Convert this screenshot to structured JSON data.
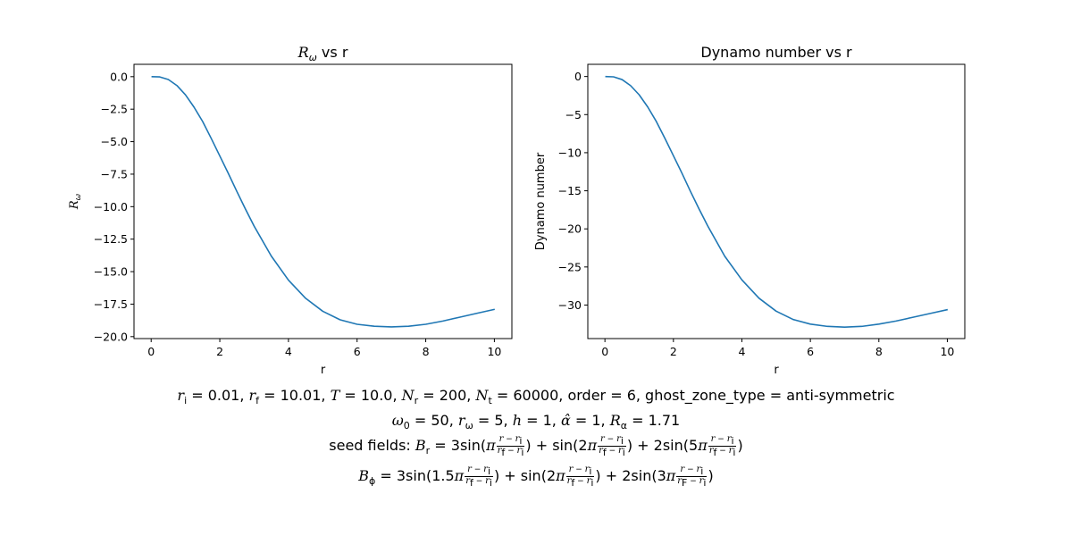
{
  "chart_data": [
    {
      "type": "line",
      "title": "R_ω vs r",
      "title_symbol": "R",
      "title_sub": "ω",
      "title_rest": " vs r",
      "xlabel": "r",
      "ylabel": "R_ω",
      "ylabel_symbol": "R",
      "ylabel_sub": "ω",
      "xlim": [
        -0.5,
        10.51
      ],
      "ylim": [
        -20.15,
        0.95
      ],
      "xticks": [
        0,
        2,
        4,
        6,
        8,
        10
      ],
      "xtick_labels": [
        "0",
        "2",
        "4",
        "6",
        "8",
        "10"
      ],
      "yticks": [
        0.0,
        -2.5,
        -5.0,
        -7.5,
        -10.0,
        -12.5,
        -15.0,
        -17.5,
        -20.0
      ],
      "ytick_labels": [
        "0.0",
        "−2.5",
        "−5.0",
        "−7.5",
        "−10.0",
        "−12.5",
        "−15.0",
        "−17.5",
        "−20.0"
      ],
      "grid": false,
      "series": [
        {
          "color": "#1f77b4",
          "x": [
            0.01,
            0.25,
            0.5,
            0.75,
            1.0,
            1.25,
            1.5,
            1.75,
            2.0,
            2.25,
            2.5,
            2.75,
            3.0,
            3.5,
            4.0,
            4.5,
            5.0,
            5.5,
            6.0,
            6.5,
            7.0,
            7.5,
            8.0,
            8.5,
            9.0,
            9.5,
            10.01
          ],
          "y": [
            0.0,
            -0.02,
            -0.22,
            -0.68,
            -1.4,
            -2.35,
            -3.45,
            -4.75,
            -6.1,
            -7.45,
            -8.85,
            -10.2,
            -11.5,
            -13.8,
            -15.65,
            -17.05,
            -18.05,
            -18.7,
            -19.05,
            -19.2,
            -19.25,
            -19.2,
            -19.05,
            -18.8,
            -18.5,
            -18.2,
            -17.9
          ]
        }
      ]
    },
    {
      "type": "line",
      "title": "Dynamo number vs r",
      "xlabel": "r",
      "ylabel": "Dynamo number",
      "xlim": [
        -0.5,
        10.51
      ],
      "ylim": [
        -34.4,
        1.6
      ],
      "xticks": [
        0,
        2,
        4,
        6,
        8,
        10
      ],
      "xtick_labels": [
        "0",
        "2",
        "4",
        "6",
        "8",
        "10"
      ],
      "yticks": [
        0,
        -5,
        -10,
        -15,
        -20,
        -25,
        -30
      ],
      "ytick_labels": [
        "0",
        "−5",
        "−10",
        "−15",
        "−20",
        "−25",
        "−30"
      ],
      "grid": false,
      "series": [
        {
          "color": "#1f77b4",
          "x": [
            0.01,
            0.25,
            0.5,
            0.75,
            1.0,
            1.25,
            1.5,
            1.75,
            2.0,
            2.25,
            2.5,
            2.75,
            3.0,
            3.5,
            4.0,
            4.5,
            5.0,
            5.5,
            6.0,
            6.5,
            7.0,
            7.5,
            8.0,
            8.5,
            9.0,
            9.5,
            10.01
          ],
          "y": [
            0.0,
            -0.04,
            -0.4,
            -1.2,
            -2.4,
            -4.0,
            -5.9,
            -8.1,
            -10.4,
            -12.7,
            -15.1,
            -17.4,
            -19.6,
            -23.6,
            -26.7,
            -29.1,
            -30.8,
            -31.9,
            -32.5,
            -32.8,
            -32.9,
            -32.8,
            -32.5,
            -32.1,
            -31.6,
            -31.1,
            -30.6
          ]
        }
      ]
    }
  ],
  "caption": {
    "line1": {
      "ri": " = 0.01, ",
      "rf": " = 10.01, ",
      "T": " = 10.0, ",
      "Nr": " = 200, ",
      "Nt": " = 60000, order = 6, ghost_zone_type = anti-symmetric"
    },
    "line2": {
      "omega0": " = 50, ",
      "romega": " = 5, ",
      "h": " = 1, ",
      "alpha": " = 1, ",
      "Ralpha": " = 1.71"
    },
    "line3": {
      "prefix": "seed fields: ",
      "eq": " = 3sin(",
      "t1": ") + sin(2",
      "t2": ") + 2sin(5",
      "end": ")"
    },
    "line4": {
      "eq": " = 3sin(1.5",
      "t1": ") + sin(2",
      "t2": ") + 2sin(3",
      "end": ")"
    }
  }
}
